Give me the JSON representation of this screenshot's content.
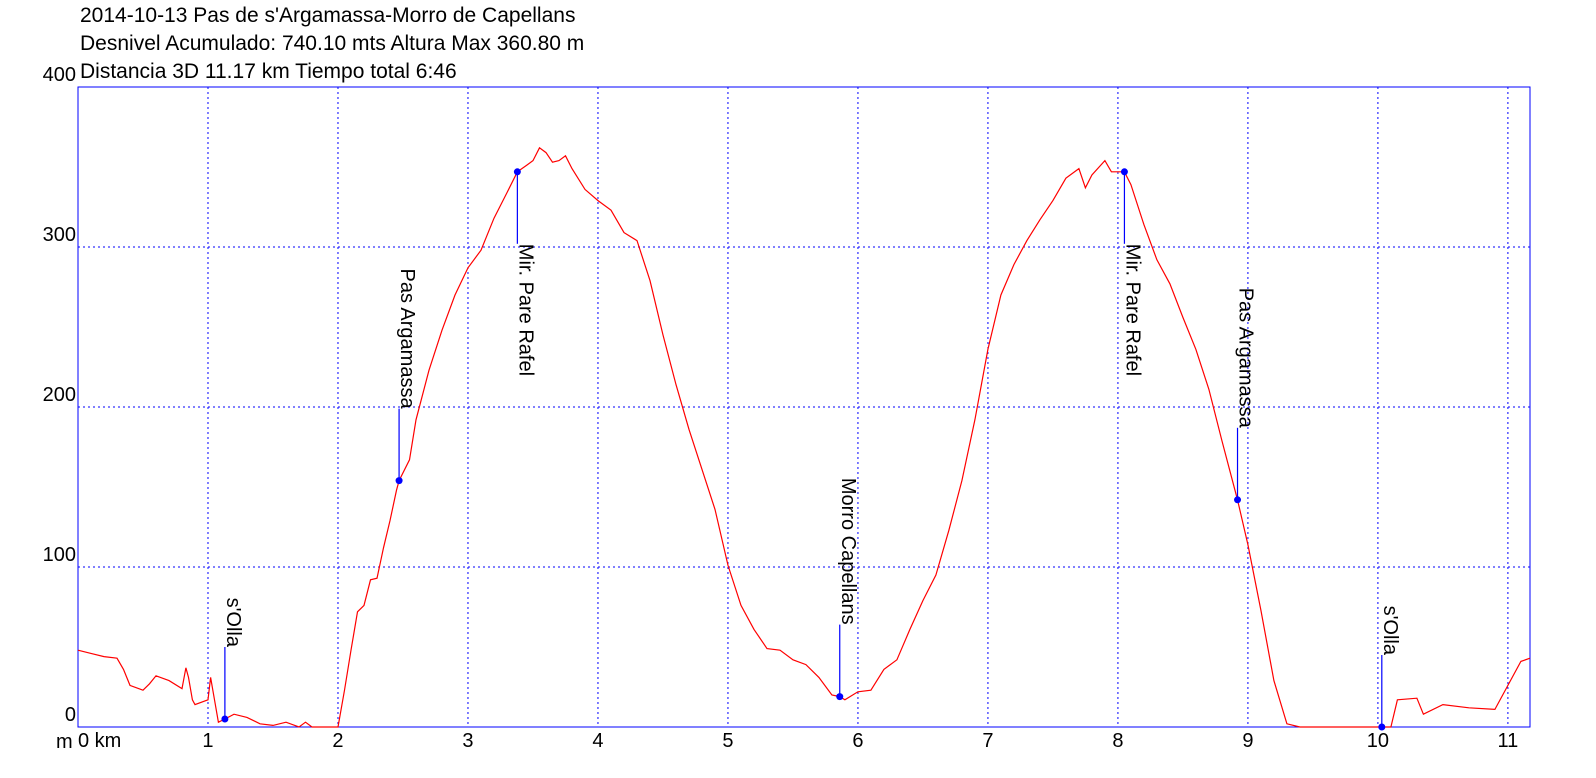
{
  "chart_data": {
    "type": "line",
    "title_lines": [
      "2014-10-13 Pas de s'Argamassa-Morro de Capellans",
      "Desnivel Acumulado: 740.10 mts  Altura Max 360.80 m",
      "Distancia 3D 11.17 km  Tiempo total 6:46"
    ],
    "y_label": "m",
    "xlim": [
      0,
      11.17
    ],
    "ylim": [
      0,
      400
    ],
    "xticks": [
      {
        "value": 0,
        "label": "0 km"
      },
      1,
      2,
      3,
      4,
      5,
      6,
      7,
      8,
      9,
      10,
      11
    ],
    "yticks": [
      0,
      100,
      200,
      300,
      400
    ],
    "grid": true,
    "series": [
      {
        "name": "Altura",
        "color": "#ff0000",
        "x": [
          0,
          0.1,
          0.2,
          0.3,
          0.35,
          0.4,
          0.5,
          0.55,
          0.6,
          0.7,
          0.8,
          0.83,
          0.85,
          0.88,
          0.9,
          1.0,
          1.02,
          1.05,
          1.08,
          1.13,
          1.2,
          1.3,
          1.4,
          1.5,
          1.6,
          1.7,
          1.75,
          1.8,
          2.0,
          2.05,
          2.1,
          2.15,
          2.2,
          2.25,
          2.3,
          2.35,
          2.4,
          2.45,
          2.47,
          2.55,
          2.6,
          2.7,
          2.8,
          2.9,
          3.0,
          3.1,
          3.2,
          3.3,
          3.38,
          3.45,
          3.5,
          3.55,
          3.6,
          3.65,
          3.7,
          3.75,
          3.8,
          3.9,
          4.0,
          4.1,
          4.2,
          4.3,
          4.4,
          4.5,
          4.6,
          4.7,
          4.8,
          4.9,
          5.0,
          5.1,
          5.2,
          5.3,
          5.4,
          5.5,
          5.6,
          5.7,
          5.8,
          5.86,
          5.9,
          6.0,
          6.1,
          6.2,
          6.3,
          6.4,
          6.5,
          6.6,
          6.7,
          6.8,
          6.9,
          7.0,
          7.1,
          7.2,
          7.3,
          7.4,
          7.5,
          7.6,
          7.7,
          7.75,
          7.8,
          7.9,
          7.95,
          8.05,
          8.1,
          8.2,
          8.3,
          8.4,
          8.5,
          8.6,
          8.7,
          8.8,
          8.92,
          9.0,
          9.1,
          9.2,
          9.3,
          9.4,
          10.0,
          10.1,
          10.15,
          10.3,
          10.35,
          10.5,
          10.7,
          10.9,
          11.0,
          11.1,
          11.17
        ],
        "values": [
          48,
          46,
          44,
          43,
          36,
          26,
          23,
          27,
          32,
          29,
          24,
          37,
          31,
          17,
          14,
          17,
          31,
          17,
          3,
          5,
          8,
          6,
          2,
          1,
          3,
          0,
          3,
          0,
          0,
          23,
          48,
          72,
          76,
          92,
          93,
          112,
          129,
          148,
          154,
          167,
          192,
          223,
          248,
          270,
          287,
          298,
          318,
          334,
          347,
          351,
          354,
          362,
          359,
          353,
          354,
          357,
          349,
          336,
          329,
          323,
          309,
          304,
          279,
          245,
          214,
          186,
          161,
          136,
          101,
          76,
          61,
          49,
          48,
          42,
          39,
          31,
          20,
          19,
          17,
          22,
          23,
          36,
          42,
          61,
          79,
          95,
          123,
          154,
          192,
          236,
          270,
          289,
          304,
          317,
          329,
          343,
          349,
          337,
          345,
          354,
          347,
          347,
          339,
          314,
          292,
          277,
          256,
          236,
          211,
          179,
          142,
          114,
          73,
          29,
          2,
          0,
          0,
          0,
          17,
          18,
          8,
          14,
          12,
          11,
          26,
          41,
          43
        ]
      }
    ],
    "waypoints": {
      "color": "#0000ff",
      "points": [
        {
          "label": "s'Olla",
          "x": 1.13,
          "y": 5
        },
        {
          "label": "Pas Argamassa",
          "x": 2.47,
          "y": 154
        },
        {
          "label": "Mir. Pare Rafel",
          "x": 3.38,
          "y": 347
        },
        {
          "label": "Morro Capellans",
          "x": 5.86,
          "y": 19
        },
        {
          "label": "Mir. Pare Rafel",
          "x": 8.05,
          "y": 347
        },
        {
          "label": "Pas Argamassa",
          "x": 8.92,
          "y": 142
        },
        {
          "label": "s'Olla",
          "x": 10.03,
          "y": 0
        }
      ]
    }
  }
}
